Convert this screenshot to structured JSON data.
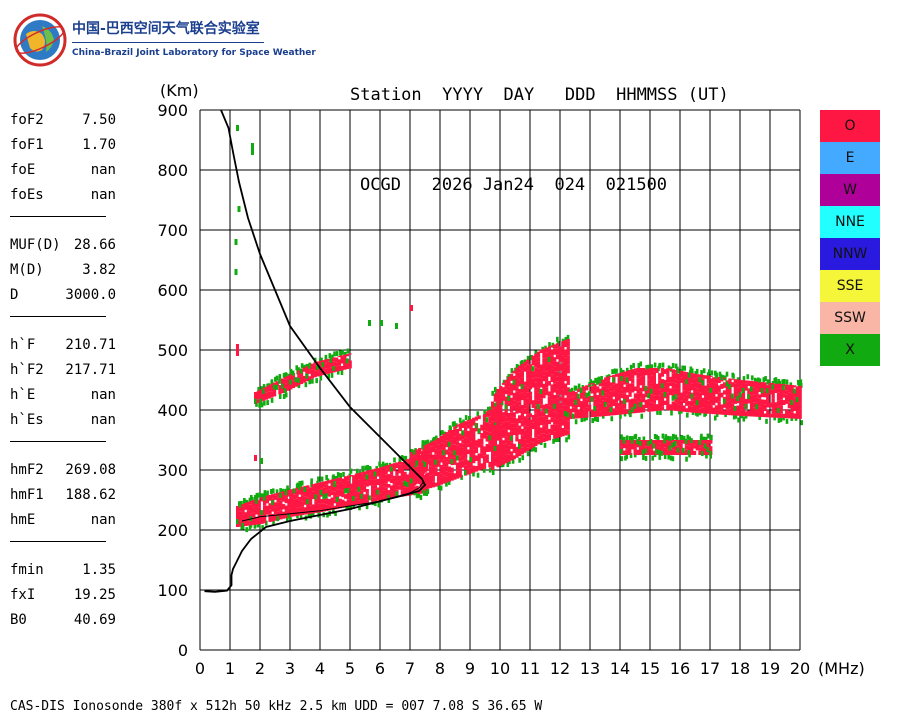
{
  "logo": {
    "cn_text": "中国-巴西空间天气联合实验室",
    "en_text": "China-Brazil Joint Laboratory for Space Weather"
  },
  "header": {
    "line1": "Station  YYYY  DAY   DDD  HHMMSS (UT)",
    "line2": "OCGD   2026 Jan24  024  021500"
  },
  "params": [
    {
      "label": "foF2",
      "value": "7.50"
    },
    {
      "label": "foF1",
      "value": "1.70"
    },
    {
      "label": "foE",
      "value": "nan"
    },
    {
      "label": "foEs",
      "value": "nan"
    },
    {
      "sep": true
    },
    {
      "label": "MUF(D)",
      "value": "28.66"
    },
    {
      "label": "M(D)",
      "value": "3.82"
    },
    {
      "label": "D",
      "value": "3000.0"
    },
    {
      "sep": true
    },
    {
      "label": "h`F",
      "value": "210.71"
    },
    {
      "label": "h`F2",
      "value": "217.71"
    },
    {
      "label": "h`E",
      "value": "nan"
    },
    {
      "label": "h`Es",
      "value": "nan"
    },
    {
      "sep": true
    },
    {
      "label": "hmF2",
      "value": "269.08"
    },
    {
      "label": "hmF1",
      "value": "188.62"
    },
    {
      "label": "hmE",
      "value": "nan"
    },
    {
      "sep": true
    },
    {
      "label": "fmin",
      "value": "1.35"
    },
    {
      "label": "fxI",
      "value": "19.25"
    },
    {
      "label": "B0",
      "value": "40.69"
    }
  ],
  "legend": [
    {
      "label": "O",
      "color": "#ff1744"
    },
    {
      "label": "E",
      "color": "#44aaff"
    },
    {
      "label": "W",
      "color": "#b0009a"
    },
    {
      "label": "NNE",
      "color": "#22ffff"
    },
    {
      "label": "NNW",
      "color": "#2a1adf"
    },
    {
      "label": "SSE",
      "color": "#f5f53a"
    },
    {
      "label": "SSW",
      "color": "#f9b5a5"
    },
    {
      "label": "X",
      "color": "#11aa11"
    }
  ],
  "footer": "CAS-DIS Ionosonde 380f x 512h 50 kHz 2.5 km UDD = 007 7.08 S 36.65 W",
  "chart_data": {
    "type": "scatter",
    "title": "",
    "xlabel": "(MHz)",
    "ylabel": "(Km)",
    "xlim": [
      0,
      20
    ],
    "ylim": [
      0,
      900
    ],
    "grid": true,
    "x_ticks": [
      0,
      1,
      2,
      3,
      4,
      5,
      6,
      7,
      8,
      9,
      10,
      11,
      12,
      13,
      14,
      15,
      16,
      17,
      18,
      19,
      20
    ],
    "y_ticks": [
      0,
      100,
      200,
      300,
      400,
      500,
      600,
      700,
      800,
      900
    ],
    "colors": {
      "O": "#ff1744",
      "X": "#11aa11",
      "profile": "#000000"
    },
    "profile_curve": {
      "name": "electron density profile",
      "x": [
        0.15,
        0.5,
        0.9,
        1.05,
        1.05,
        1.1,
        1.2,
        1.4,
        1.7,
        2.2,
        3.0,
        4.0,
        5.0,
        6.0,
        6.8,
        7.3,
        7.5,
        7.4,
        7.0,
        6.0,
        5.0,
        4.0,
        3.0,
        2.5,
        2.0,
        1.6,
        1.3,
        1.1,
        0.95,
        0.7
      ],
      "y": [
        98,
        97,
        99,
        108,
        125,
        135,
        145,
        165,
        185,
        205,
        215,
        225,
        235,
        248,
        258,
        265,
        275,
        285,
        305,
        355,
        405,
        470,
        540,
        600,
        660,
        720,
        780,
        830,
        870,
        900
      ]
    },
    "virtual_height_trace": {
      "name": "black virtual trace",
      "x": [
        1.4,
        2.0,
        3.0,
        4.0,
        5.0,
        6.0,
        6.5,
        7.0,
        7.3,
        7.45
      ],
      "y": [
        215,
        222,
        227,
        232,
        240,
        248,
        255,
        262,
        270,
        280
      ]
    },
    "o_trace_regions": [
      {
        "name": "F trace (low band)",
        "x_from": 1.2,
        "x_to": 7.5,
        "y_low": [
          205,
          210,
          222,
          230,
          240,
          250,
          258,
          262
        ],
        "y_high": [
          240,
          255,
          268,
          280,
          292,
          305,
          320,
          338
        ],
        "x": [
          1.2,
          2.0,
          3.0,
          4.0,
          5.0,
          6.0,
          7.0,
          7.5
        ]
      },
      {
        "name": "F trace (rise)",
        "x_from": 7.0,
        "x_to": 10.0,
        "y_low": [
          262,
          272,
          285,
          300,
          310
        ],
        "y_high": [
          330,
          350,
          375,
          392,
          410
        ],
        "x": [
          7.0,
          7.8,
          8.5,
          9.3,
          10.0
        ]
      },
      {
        "name": "F trace (upper)",
        "x_from": 9.7,
        "x_to": 12.3,
        "y_low": [
          300,
          320,
          345,
          360
        ],
        "y_high": [
          425,
          470,
          500,
          520
        ],
        "x": [
          9.7,
          10.5,
          11.3,
          12.3
        ]
      },
      {
        "name": "F2 spread",
        "x_from": 12.3,
        "x_to": 20.0,
        "y_low": [
          385,
          390,
          395,
          400,
          395,
          390,
          385
        ],
        "y_high": [
          430,
          455,
          470,
          470,
          460,
          450,
          440
        ],
        "x": [
          12.3,
          13.5,
          14.5,
          15.5,
          16.5,
          18.0,
          20.0
        ]
      },
      {
        "name": "multihop echo",
        "x_from": 14.0,
        "x_to": 17.0,
        "y_low": [
          325,
          325,
          325
        ],
        "y_high": [
          350,
          350,
          350
        ],
        "x": [
          14.0,
          15.5,
          17.0
        ]
      },
      {
        "name": "upper echo (low freq)",
        "x_from": 1.8,
        "x_to": 5.0,
        "y_low": [
          410,
          430,
          455,
          470
        ],
        "y_high": [
          430,
          455,
          480,
          495
        ],
        "x": [
          1.8,
          2.8,
          3.8,
          5.0
        ]
      }
    ]
  }
}
